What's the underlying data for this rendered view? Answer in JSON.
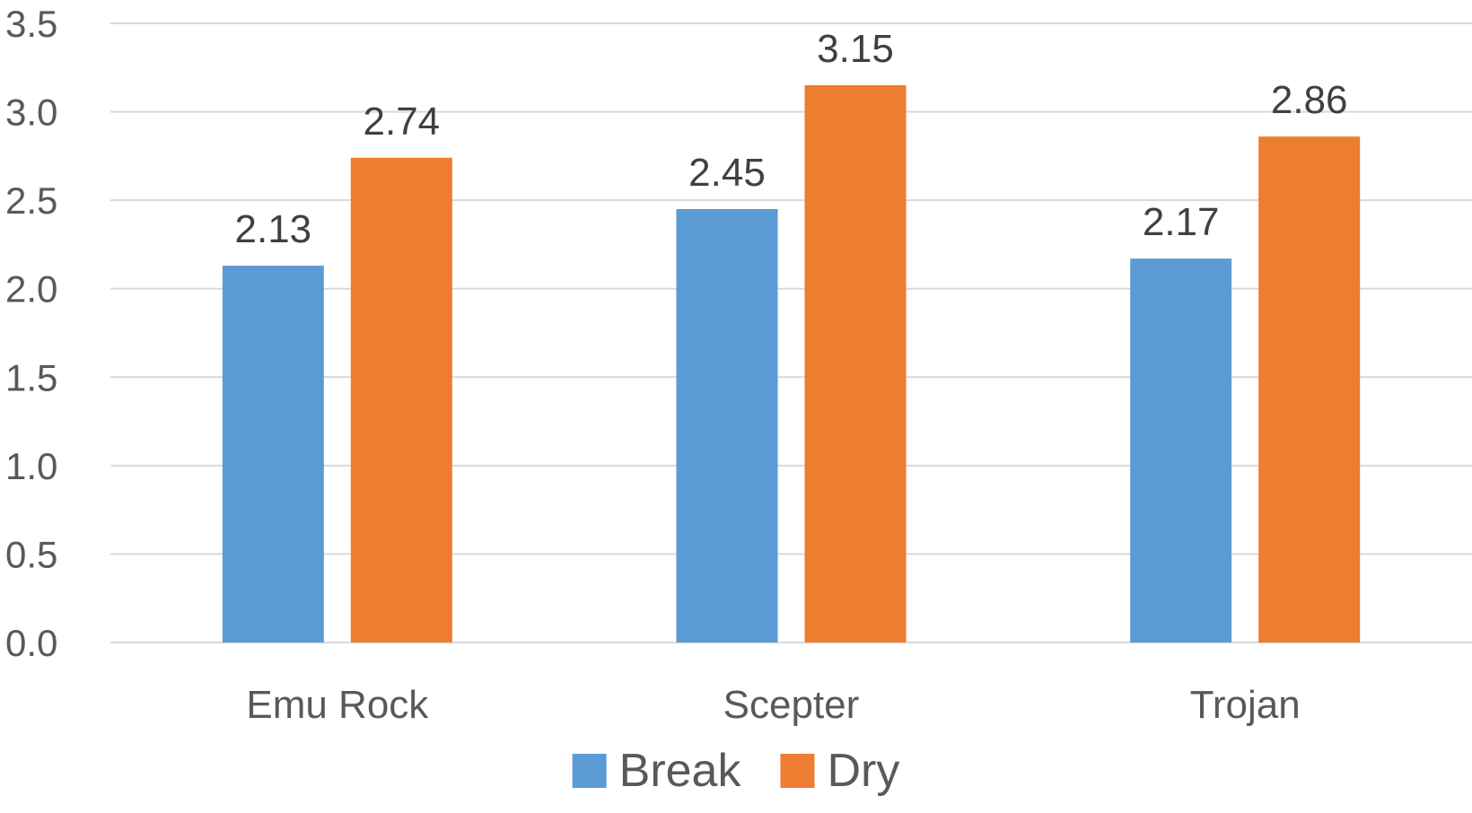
{
  "chart_data": {
    "type": "bar",
    "categories": [
      "Emu Rock",
      "Scepter",
      "Trojan"
    ],
    "series": [
      {
        "name": "Break",
        "values": [
          2.13,
          2.45,
          2.17
        ],
        "color": "#5b9bd5"
      },
      {
        "name": "Dry",
        "values": [
          2.74,
          3.15,
          2.86
        ],
        "color": "#ed7d31"
      }
    ],
    "yticks": [
      "0.0",
      "0.5",
      "1.0",
      "1.5",
      "2.0",
      "2.5",
      "3.0",
      "3.5"
    ],
    "ylim": [
      0,
      3.5
    ],
    "grid": true,
    "data_labels": true,
    "legend": "bottom"
  }
}
